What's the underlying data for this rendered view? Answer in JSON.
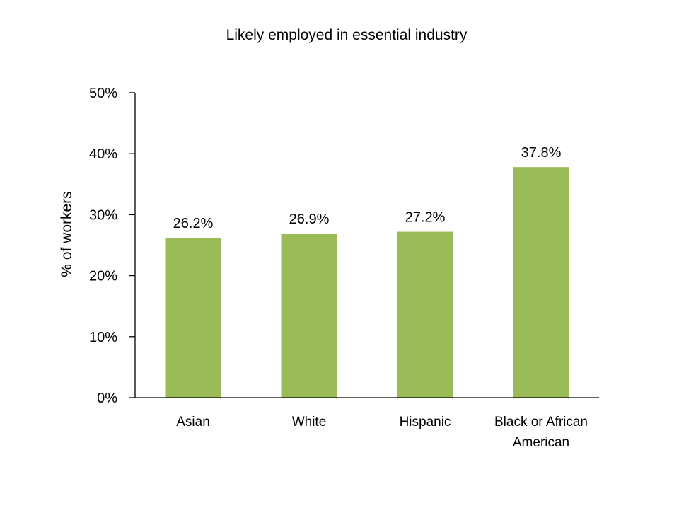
{
  "chart_data": {
    "type": "bar",
    "title": "Likely employed in essential industry",
    "xlabel": "",
    "ylabel": "% of workers",
    "categories": [
      [
        "Asian"
      ],
      [
        "White"
      ],
      [
        "Hispanic"
      ],
      [
        "Black or African",
        "American"
      ]
    ],
    "values": [
      26.2,
      26.9,
      27.2,
      37.8
    ],
    "value_labels": [
      "26.2%",
      "26.9%",
      "27.2%",
      "37.8%"
    ],
    "ylim": [
      0,
      50
    ],
    "yticks": [
      0,
      10,
      20,
      30,
      40,
      50
    ],
    "ytick_labels": [
      "0%",
      "10%",
      "20%",
      "30%",
      "40%",
      "50%"
    ],
    "grid": false,
    "legend": "none",
    "colors": {
      "bar": "#9bbb59",
      "axis": "#000000"
    }
  }
}
